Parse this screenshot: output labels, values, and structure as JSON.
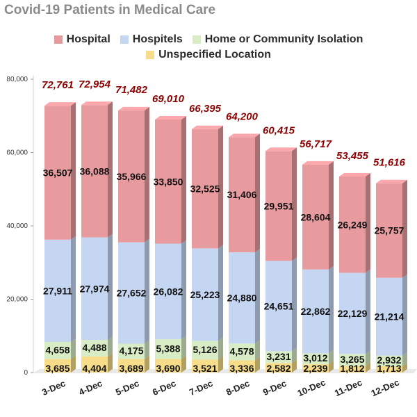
{
  "chart_data": {
    "type": "bar",
    "stacked": true,
    "three_d": true,
    "title": "Covid-19 Patients in Medical Care",
    "categories": [
      "3-Dec",
      "4-Dec",
      "5-Dec",
      "6-Dec",
      "7-Dec",
      "8-Dec",
      "9-Dec",
      "10-Dec",
      "11-Dec",
      "12-Dec"
    ],
    "series": [
      {
        "name": "Unspecified Location",
        "color": "#f7dd8a",
        "values": [
          3685,
          4404,
          3689,
          3690,
          3521,
          3336,
          2582,
          2239,
          1812,
          1713
        ]
      },
      {
        "name": "Home or Community Isolation",
        "color": "#d8ecc6",
        "values": [
          4658,
          4488,
          4175,
          5388,
          5126,
          4578,
          3231,
          3012,
          3265,
          2932
        ]
      },
      {
        "name": "Hospitels",
        "color": "#c5d6f2",
        "values": [
          27911,
          27974,
          27652,
          26082,
          25223,
          24880,
          24651,
          22862,
          22129,
          21214
        ]
      },
      {
        "name": "Hospital",
        "color": "#e89b9f",
        "values": [
          36507,
          36088,
          35966,
          33850,
          32525,
          31406,
          29951,
          28604,
          26249,
          25757
        ]
      }
    ],
    "value_labels": {
      "Unspecified Location": [
        "3,685",
        "4,404",
        "3,689",
        "3,690",
        "3,521",
        "3,336",
        "2,582",
        "2,239",
        "1,812",
        "1,713"
      ],
      "Home or Community Isolation": [
        "4,658",
        "4,488",
        "4,175",
        "5,388",
        "5,126",
        "4,578",
        "3,231",
        "3,012",
        "3,265",
        "2,932"
      ],
      "Hospitels": [
        "27,911",
        "27,974",
        "27,652",
        "26,082",
        "25,223",
        "24,880",
        "24,651",
        "22,862",
        "22,129",
        "21,214"
      ],
      "Hospital": [
        "36,507",
        "36,088",
        "35,966",
        "33,850",
        "32,525",
        "31,406",
        "29,951",
        "28,604",
        "26,249",
        "25,757"
      ]
    },
    "totals": [
      72761,
      72954,
      71482,
      69010,
      66395,
      64200,
      60415,
      56717,
      53455,
      51616
    ],
    "total_labels": [
      "72,761",
      "72,954",
      "71,482",
      "69,010",
      "66,395",
      "64,200",
      "60,415",
      "56,717",
      "53,455",
      "51,616"
    ],
    "total_color": "#8b0000",
    "ylim": [
      0,
      80000
    ],
    "yticks": [
      0,
      20000,
      40000,
      60000,
      80000
    ],
    "ytick_labels": [
      "0",
      "20,000",
      "40,000",
      "60,000",
      "80,000"
    ],
    "grid": false,
    "legend_position": "top",
    "legend_order": [
      "Hospital",
      "Hospitels",
      "Home or Community Isolation",
      "Unspecified Location"
    ]
  }
}
